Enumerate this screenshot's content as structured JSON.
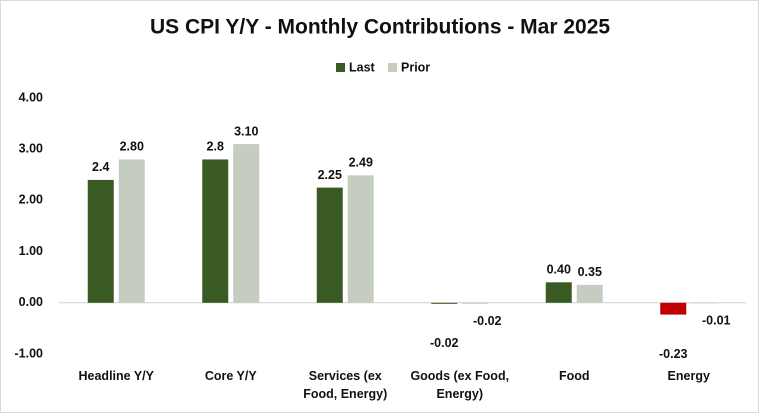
{
  "chart_data": {
    "type": "bar",
    "title": "US CPI Y/Y - Monthly Contributions - Mar 2025",
    "categories": [
      "Headline Y/Y",
      "Core Y/Y",
      "Services (ex Food, Energy)",
      "Goods (ex Food, Energy)",
      "Food",
      "Energy"
    ],
    "series": [
      {
        "name": "Last",
        "color": "#3a5a24",
        "colors": [
          "#3a5a24",
          "#3a5a24",
          "#3a5a24",
          "#3a5a24",
          "#3a5a24",
          "#c00000"
        ],
        "values": [
          2.4,
          2.8,
          2.25,
          -0.02,
          0.4,
          -0.23
        ],
        "value_labels": [
          "2.4",
          "2.8",
          "2.25",
          "-0.02",
          "0.40",
          "-0.23"
        ]
      },
      {
        "name": "Prior",
        "color": "#c5cdc0",
        "values": [
          2.8,
          3.1,
          2.49,
          -0.02,
          0.35,
          -0.01
        ],
        "value_labels": [
          "2.80",
          "3.10",
          "2.49",
          "-0.02",
          "0.35",
          "-0.01"
        ]
      }
    ],
    "ylim": [
      -1,
      4
    ],
    "yticks": [
      {
        "value": -1,
        "label": "-1.00"
      },
      {
        "value": 0,
        "label": "0.00"
      },
      {
        "value": 1,
        "label": "1.00"
      },
      {
        "value": 2,
        "label": "2.00"
      },
      {
        "value": 3,
        "label": "3.00"
      },
      {
        "value": 4,
        "label": "4.00"
      }
    ],
    "grid": false,
    "legend": "top"
  }
}
